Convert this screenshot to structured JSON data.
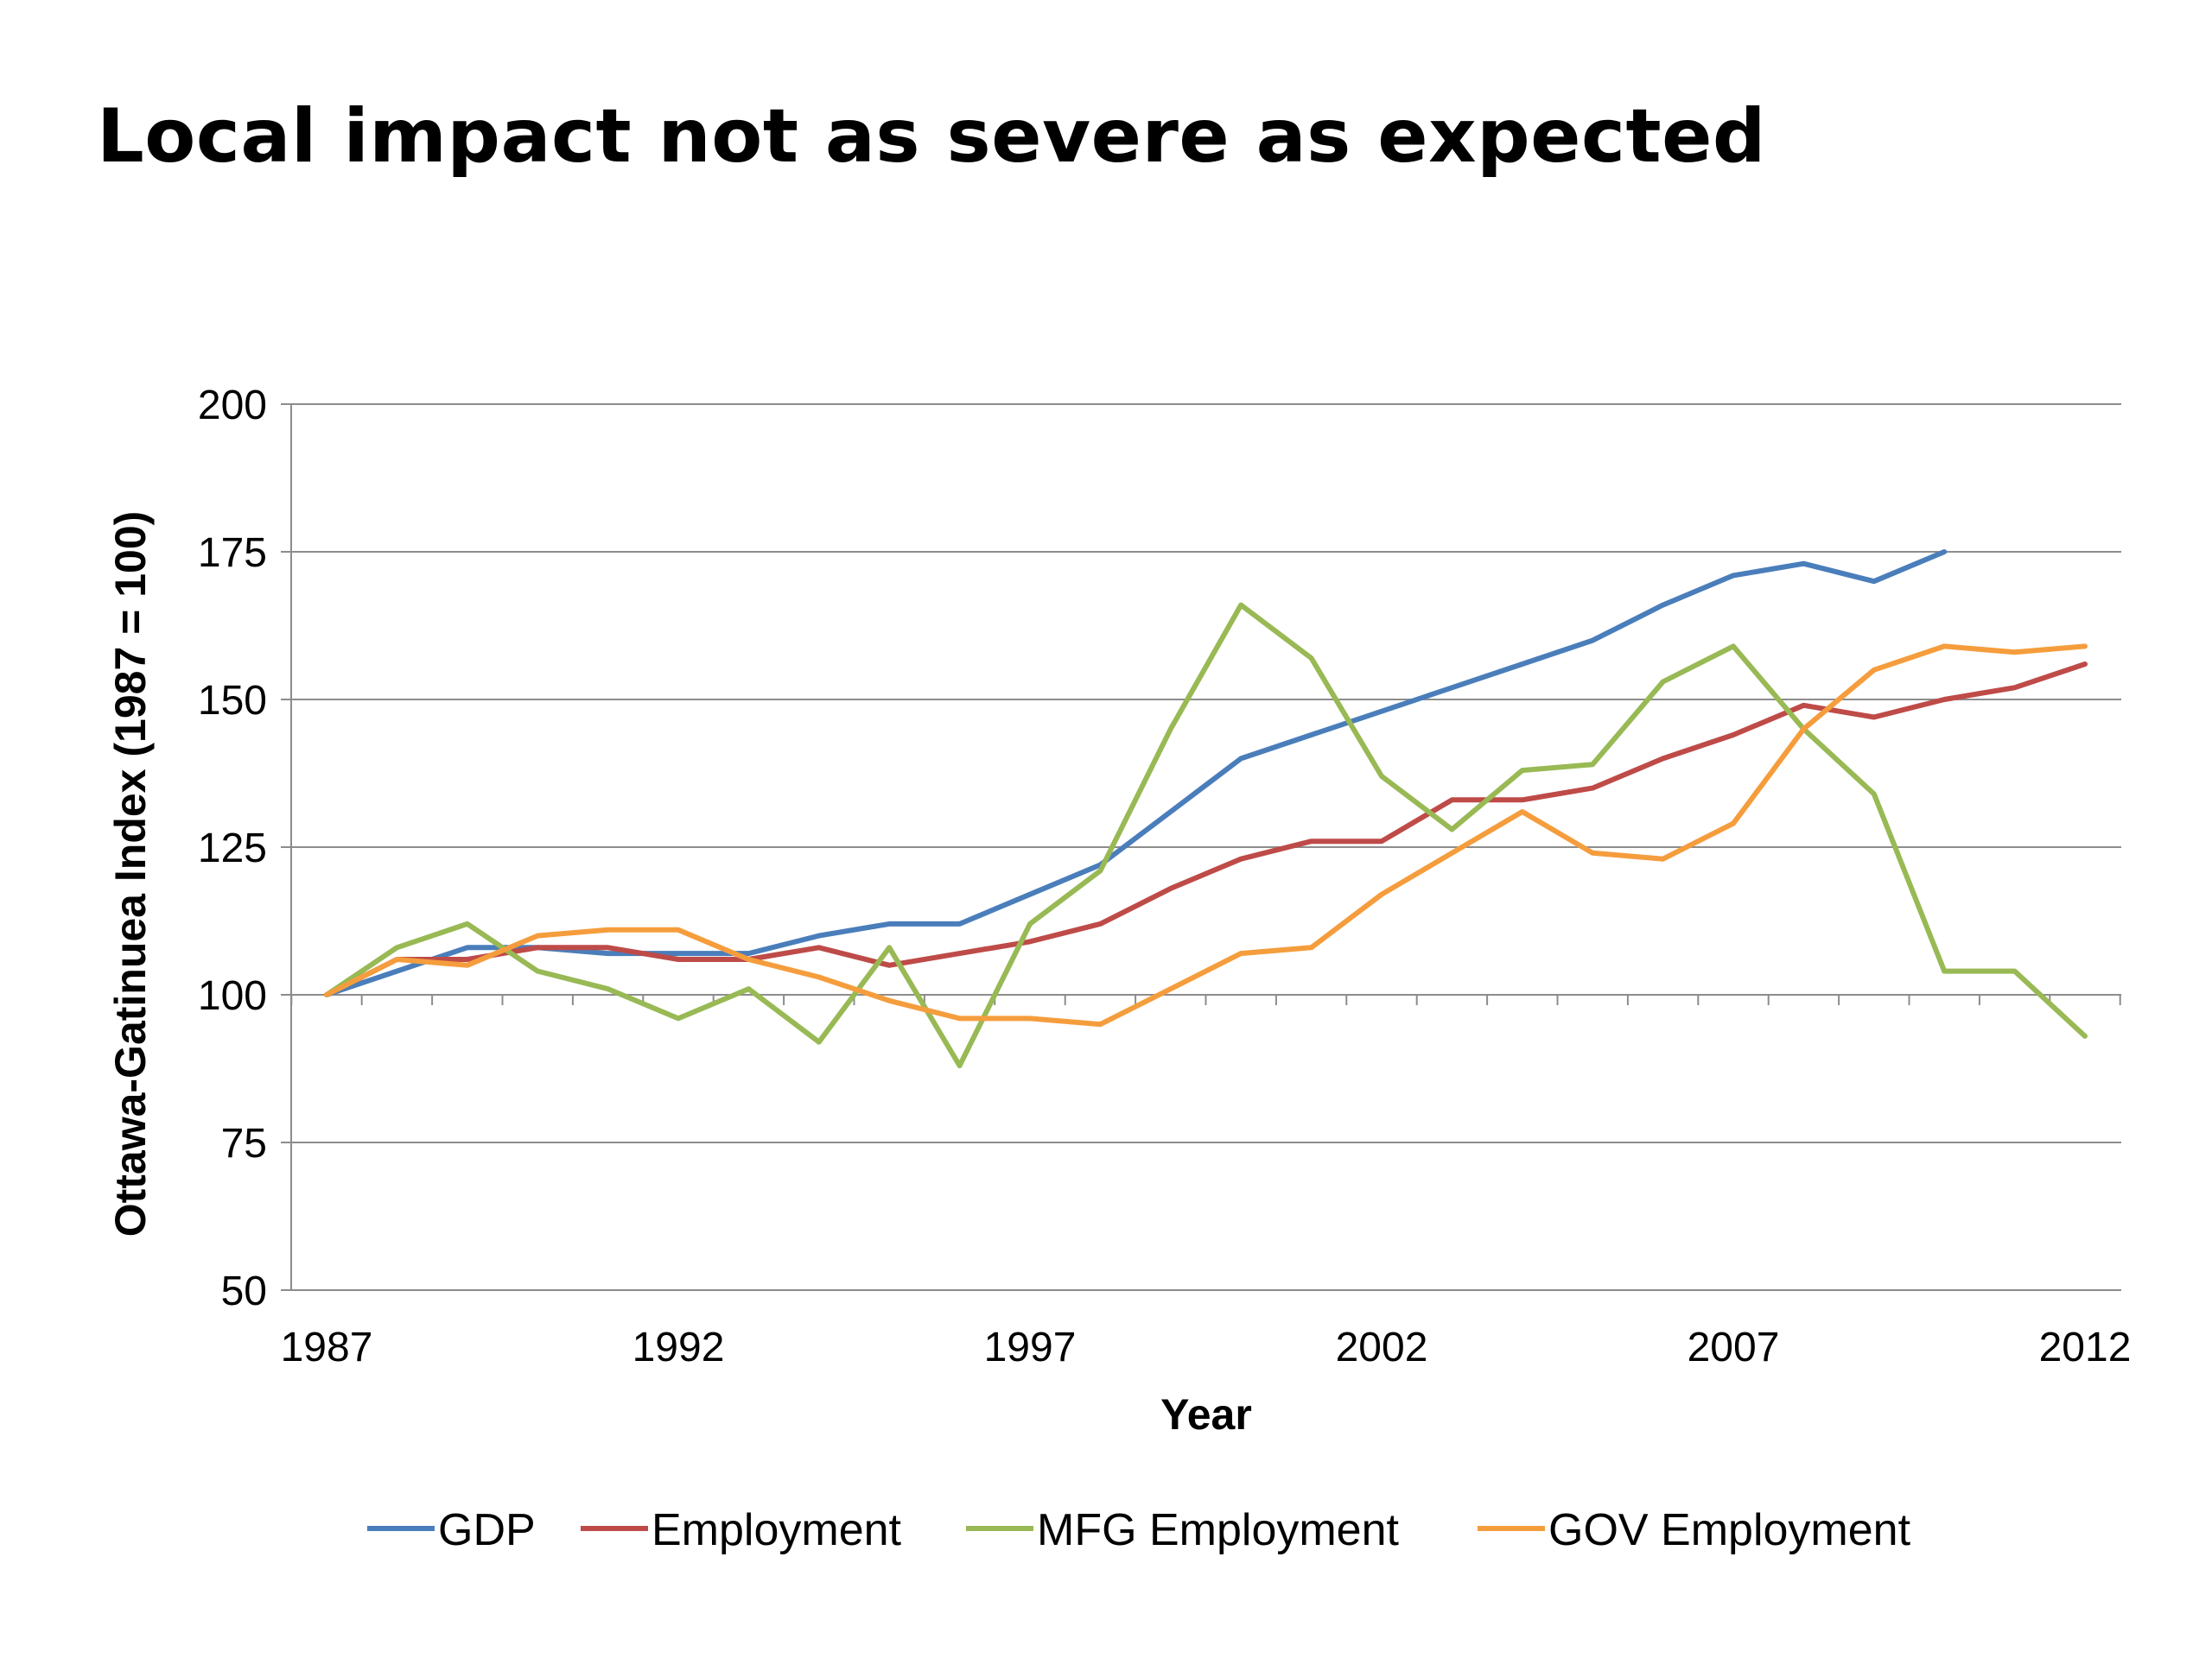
{
  "page": {
    "title": "Local impact not as severe as expected"
  },
  "chart_data": {
    "type": "line",
    "title": "",
    "xlabel": "Year",
    "ylabel": "Ottawa-Gatinuea Index (1987 = 100)",
    "xlim": [
      1987,
      2012
    ],
    "ylim": [
      50,
      200
    ],
    "x_ticks": [
      "1987",
      "1992",
      "1997",
      "2002",
      "2007",
      "2012"
    ],
    "y_ticks": [
      "50",
      "75",
      "100",
      "125",
      "150",
      "175",
      "200"
    ],
    "grid": "horizontal",
    "legend_position": "bottom",
    "series": [
      {
        "name": "GDP",
        "color": "#4a7ebb",
        "x": [
          1987,
          1988,
          1989,
          1990,
          1991,
          1992,
          1993,
          1994,
          1995,
          1996,
          1997,
          1998,
          1999,
          2000,
          2001,
          2002,
          2003,
          2004,
          2005,
          2006,
          2007,
          2008,
          2009,
          2010
        ],
        "values": [
          100,
          104,
          108,
          108,
          107,
          107,
          107,
          110,
          112,
          112,
          117,
          122,
          131,
          140,
          144,
          148,
          152,
          156,
          160,
          166,
          171,
          173,
          170,
          175
        ]
      },
      {
        "name": "Employment",
        "color": "#be4b48",
        "x": [
          1987,
          1988,
          1989,
          1990,
          1991,
          1992,
          1993,
          1994,
          1995,
          1996,
          1997,
          1998,
          1999,
          2000,
          2001,
          2002,
          2003,
          2004,
          2005,
          2006,
          2007,
          2008,
          2009,
          2010,
          2011,
          2012
        ],
        "values": [
          100,
          106,
          106,
          108,
          108,
          106,
          106,
          108,
          105,
          107,
          109,
          112,
          118,
          123,
          126,
          126,
          133,
          133,
          135,
          140,
          144,
          149,
          147,
          150,
          152,
          156
        ]
      },
      {
        "name": "MFG Employment",
        "color": "#98b954",
        "x": [
          1987,
          1988,
          1989,
          1990,
          1991,
          1992,
          1993,
          1994,
          1995,
          1996,
          1997,
          1998,
          1999,
          2000,
          2001,
          2002,
          2003,
          2004,
          2005,
          2006,
          2007,
          2008,
          2009,
          2010,
          2011,
          2012
        ],
        "values": [
          100,
          108,
          112,
          104,
          101,
          96,
          101,
          92,
          108,
          88,
          112,
          121,
          145,
          166,
          157,
          137,
          128,
          138,
          139,
          153,
          159,
          145,
          134,
          104,
          104,
          93
        ]
      },
      {
        "name": "GOV Employment",
        "color": "#f59d3d",
        "x": [
          1987,
          1988,
          1989,
          1990,
          1991,
          1992,
          1993,
          1994,
          1995,
          1996,
          1997,
          1998,
          1999,
          2000,
          2001,
          2002,
          2003,
          2004,
          2005,
          2006,
          2007,
          2008,
          2009,
          2010,
          2011,
          2012
        ],
        "values": [
          100,
          106,
          105,
          110,
          111,
          111,
          106,
          103,
          99,
          96,
          96,
          95,
          101,
          107,
          108,
          117,
          124,
          131,
          124,
          123,
          129,
          145,
          155,
          159,
          158,
          159
        ]
      }
    ]
  }
}
